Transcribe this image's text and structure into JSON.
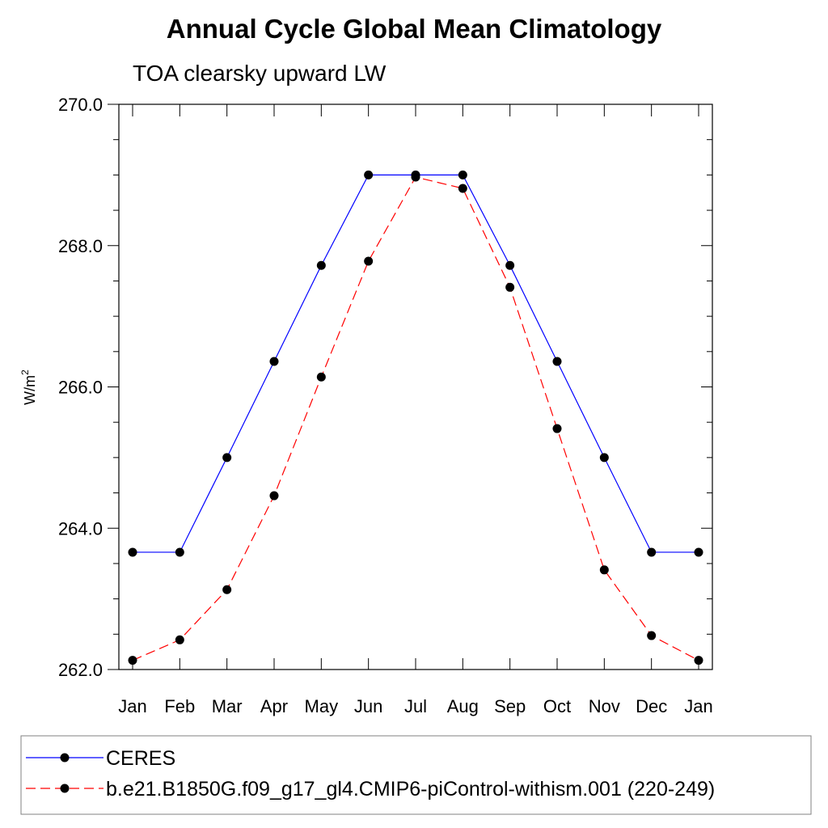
{
  "chart_data": {
    "type": "line",
    "title": "Annual Cycle Global Mean Climatology",
    "subtitle": "TOA clearsky upward LW",
    "ylabel_main": "W/m",
    "ylabel_sup": "2",
    "xlabel": "",
    "categories": [
      "Jan",
      "Feb",
      "Mar",
      "Apr",
      "May",
      "Jun",
      "Jul",
      "Aug",
      "Sep",
      "Oct",
      "Nov",
      "Dec",
      "Jan"
    ],
    "ylim": [
      262.0,
      270.0
    ],
    "yticks": [
      262.0,
      264.0,
      266.0,
      268.0,
      270.0
    ],
    "ytick_labels": [
      "262.0",
      "264.0",
      "266.0",
      "268.0",
      "270.0"
    ],
    "grid": false,
    "legend_position": "bottom",
    "series": [
      {
        "name": "CERES",
        "color": "#0000ff",
        "dash": "solid",
        "values": [
          263.66,
          263.66,
          265.0,
          266.36,
          267.72,
          269.0,
          269.0,
          269.0,
          267.72,
          266.36,
          265.0,
          263.66,
          263.66
        ]
      },
      {
        "name": "b.e21.B1850G.f09_g17_gl4.CMIP6-piControl-withism.001 (220-249)",
        "color": "#ff0000",
        "dash": "dashed",
        "values": [
          262.13,
          262.42,
          263.13,
          264.46,
          266.14,
          267.78,
          268.97,
          268.81,
          267.41,
          265.41,
          263.41,
          262.48,
          262.13
        ]
      }
    ]
  }
}
